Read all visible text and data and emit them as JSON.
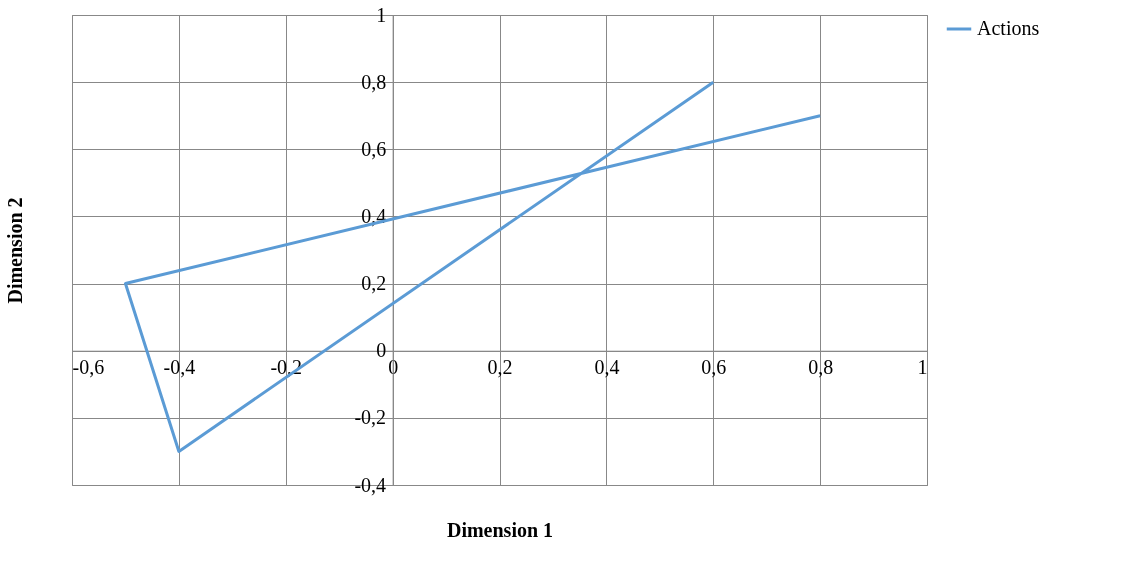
{
  "chart_data": {
    "type": "line",
    "xlabel": "Dimension 1",
    "ylabel": "Dimension 2",
    "series": [
      {
        "name": "Actions",
        "color": "#5b9bd5",
        "x": [
          0.6,
          -0.4,
          -0.5,
          0.8
        ],
        "values": [
          0.8,
          -0.3,
          0.2,
          0.7
        ]
      }
    ],
    "xlim": [
      -0.6,
      1
    ],
    "ylim": [
      -0.4,
      1
    ],
    "xticks": [
      {
        "value": -0.6,
        "label": "-0,6"
      },
      {
        "value": -0.4,
        "label": "-0,4"
      },
      {
        "value": -0.2,
        "label": "-0,2"
      },
      0,
      {
        "value": 0.2,
        "label": "0,2"
      },
      {
        "value": 0.4,
        "label": "0,4"
      },
      {
        "value": 0.6,
        "label": "0,6"
      },
      {
        "value": 0.8,
        "label": "0,8"
      },
      1
    ],
    "yticks": [
      {
        "value": -0.4,
        "label": "-0,4"
      },
      {
        "value": -0.2,
        "label": "-0,2"
      },
      0,
      {
        "value": 0.2,
        "label": "0,2"
      },
      {
        "value": 0.4,
        "label": "0,4"
      },
      {
        "value": 0.6,
        "label": "0,6"
      },
      {
        "value": 0.8,
        "label": "0,8"
      },
      1
    ],
    "grid": true,
    "legend": "right",
    "marker": "none",
    "line_style": "solid"
  }
}
